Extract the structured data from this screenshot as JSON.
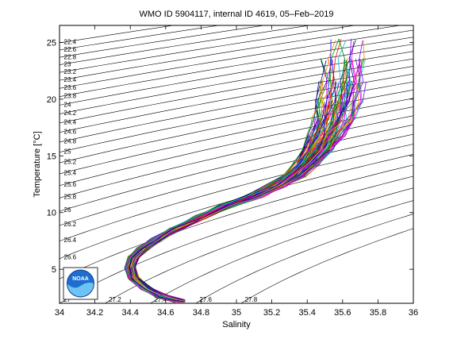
{
  "chart_data": {
    "type": "line",
    "title": "WMO ID 5904117, internal ID 4619, 05–Feb–2019",
    "xlabel": "Salinity",
    "ylabel": "Temperature [°C]",
    "xlim": [
      34,
      36
    ],
    "ylim": [
      2,
      26.5
    ],
    "xticks": [
      "34",
      "34.2",
      "34.4",
      "34.6",
      "34.8",
      "35",
      "35.2",
      "35.4",
      "35.6",
      "35.8",
      "36"
    ],
    "yticks": [
      "5",
      "10",
      "15",
      "20",
      "25"
    ],
    "density_contours": [
      {
        "sigma": 22.4,
        "label": "22.4"
      },
      {
        "sigma": 22.6,
        "label": "22.6"
      },
      {
        "sigma": 22.8,
        "label": "22.8"
      },
      {
        "sigma": 23.0,
        "label": "23"
      },
      {
        "sigma": 23.2,
        "label": "23.2"
      },
      {
        "sigma": 23.4,
        "label": "23.4"
      },
      {
        "sigma": 23.6,
        "label": "23.6"
      },
      {
        "sigma": 23.8,
        "label": "23.8"
      },
      {
        "sigma": 24.0,
        "label": "24"
      },
      {
        "sigma": 24.2,
        "label": "24.2"
      },
      {
        "sigma": 24.4,
        "label": "24.4"
      },
      {
        "sigma": 24.6,
        "label": "24.6"
      },
      {
        "sigma": 24.8,
        "label": "24.8"
      },
      {
        "sigma": 25.0,
        "label": "25"
      },
      {
        "sigma": 25.2,
        "label": "25.2"
      },
      {
        "sigma": 25.4,
        "label": "25.4"
      },
      {
        "sigma": 25.6,
        "label": "25.6"
      },
      {
        "sigma": 25.8,
        "label": "25.8"
      },
      {
        "sigma": 26.0,
        "label": "26"
      },
      {
        "sigma": 26.2,
        "label": "26.2"
      },
      {
        "sigma": 26.4,
        "label": "26.4"
      },
      {
        "sigma": 26.6,
        "label": "26.6"
      },
      {
        "sigma": 26.8,
        "label": "26.8"
      },
      {
        "sigma": 27.0,
        "label": "27"
      },
      {
        "sigma": 27.2,
        "label": "27.2"
      },
      {
        "sigma": 27.4,
        "label": "27.4"
      },
      {
        "sigma": 27.6,
        "label": "27.6"
      },
      {
        "sigma": 27.8,
        "label": "27.8"
      }
    ],
    "mean_profile": [
      {
        "s": 34.68,
        "t": 2.2
      },
      {
        "s": 34.58,
        "t": 2.6
      },
      {
        "s": 34.49,
        "t": 3.3
      },
      {
        "s": 34.42,
        "t": 4.2
      },
      {
        "s": 34.4,
        "t": 5.2
      },
      {
        "s": 34.42,
        "t": 6.0
      },
      {
        "s": 34.47,
        "t": 6.8
      },
      {
        "s": 34.55,
        "t": 7.6
      },
      {
        "s": 34.65,
        "t": 8.5
      },
      {
        "s": 34.8,
        "t": 9.6
      },
      {
        "s": 34.95,
        "t": 10.6
      },
      {
        "s": 35.1,
        "t": 11.4
      },
      {
        "s": 35.22,
        "t": 12.3
      },
      {
        "s": 35.32,
        "t": 13.2
      },
      {
        "s": 35.4,
        "t": 14.3
      },
      {
        "s": 35.46,
        "t": 15.5
      },
      {
        "s": 35.51,
        "t": 16.8
      },
      {
        "s": 35.55,
        "t": 18.2
      },
      {
        "s": 35.58,
        "t": 19.8
      },
      {
        "s": 35.6,
        "t": 21.6
      },
      {
        "s": 35.61,
        "t": 23.5
      },
      {
        "s": 35.62,
        "t": 25.2
      }
    ],
    "profile_count": 140,
    "series_colors": [
      "#0000ff",
      "#ff0000",
      "#00a000",
      "#ff00ff",
      "#00bfbf",
      "#bfbf00",
      "#000080",
      "#800080",
      "#008000",
      "#ff8000",
      "#404040",
      "#8000ff"
    ],
    "logo": {
      "text": "NOAA"
    }
  }
}
